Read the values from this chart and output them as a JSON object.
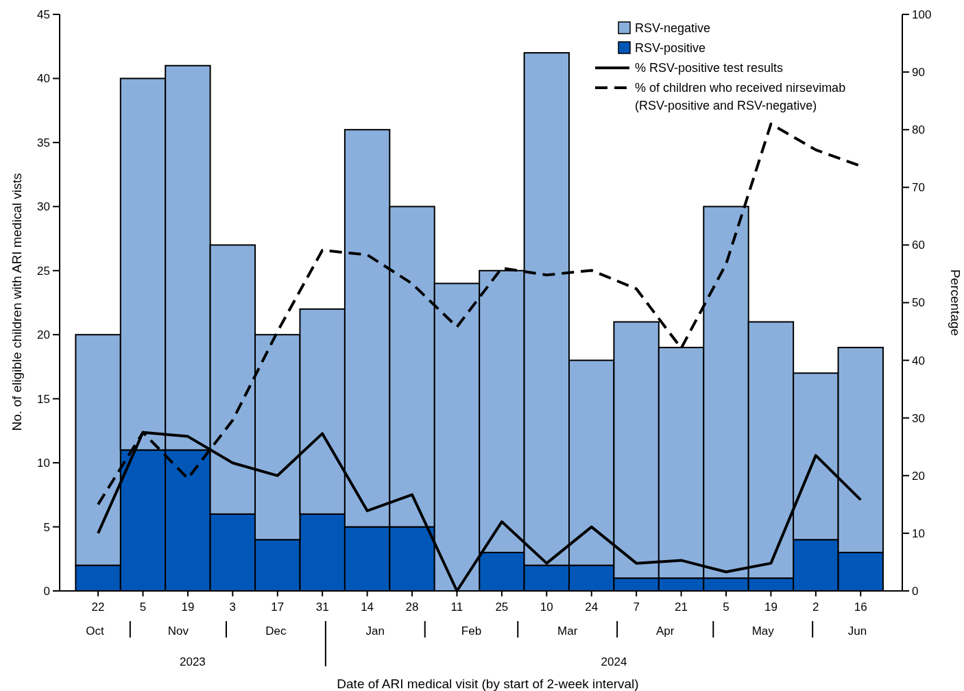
{
  "chart_data": {
    "type": "bar",
    "stacked": true,
    "xlabel": "Date of ARI medical visit (by start of 2-week interval)",
    "ylabel": "No. of eligible children with ARI medical vists",
    "y2label": "Percentage",
    "x": [
      "2023-10-22",
      "2023-11-05",
      "2023-11-19",
      "2023-12-03",
      "2023-12-17",
      "2023-12-31",
      "2024-01-14",
      "2024-01-28",
      "2024-02-11",
      "2024-02-25",
      "2024-03-10",
      "2024-03-24",
      "2024-04-07",
      "2024-04-21",
      "2024-05-05",
      "2024-05-19",
      "2024-06-02",
      "2024-06-16"
    ],
    "xlim": [
      "2023-10-10",
      "2024-06-29"
    ],
    "xticks": [
      {
        "value": "2023-10-22",
        "label": "22"
      },
      {
        "value": "2023-11-05",
        "label": "5"
      },
      {
        "value": "2023-11-19",
        "label": "19"
      },
      {
        "value": "2023-12-03",
        "label": "3"
      },
      {
        "value": "2023-12-17",
        "label": "17"
      },
      {
        "value": "2023-12-31",
        "label": "31"
      },
      {
        "value": "2024-01-14",
        "label": "14"
      },
      {
        "value": "2024-01-28",
        "label": "28"
      },
      {
        "value": "2024-02-11",
        "label": "11"
      },
      {
        "value": "2024-02-25",
        "label": "25"
      },
      {
        "value": "2024-03-10",
        "label": "10"
      },
      {
        "value": "2024-03-24",
        "label": "24"
      },
      {
        "value": "2024-04-07",
        "label": "7"
      },
      {
        "value": "2024-04-21",
        "label": "21"
      },
      {
        "value": "2024-05-05",
        "label": "5"
      },
      {
        "value": "2024-05-19",
        "label": "19"
      },
      {
        "value": "2024-06-02",
        "label": "2"
      },
      {
        "value": "2024-06-16",
        "label": "16"
      }
    ],
    "ylim": [
      0,
      45
    ],
    "yticks": [
      0,
      5,
      10,
      15,
      20,
      25,
      30,
      35,
      40,
      45
    ],
    "y2lim": [
      0,
      100
    ],
    "y2ticks": [
      0,
      10,
      20,
      30,
      40,
      50,
      60,
      70,
      80,
      90,
      100
    ],
    "grid": false,
    "legend": "top right",
    "series": [
      {
        "name": "RSV-positive",
        "color": "#0057b7",
        "values": [
          2,
          11,
          11,
          6,
          4,
          6,
          5,
          5,
          0,
          3,
          2,
          2,
          1,
          1,
          1,
          1,
          4,
          3
        ]
      },
      {
        "name": "RSV-negative",
        "color": "#8aafdc",
        "values": [
          18,
          29,
          30,
          21,
          16,
          16,
          31,
          25,
          24,
          22,
          40,
          16,
          20,
          18,
          29,
          20,
          13,
          16
        ]
      },
      {
        "name": "% RSV-positive test results",
        "type": "line",
        "axis": "y2",
        "line_style": "solid",
        "color": "#000000",
        "values": [
          10,
          27.5,
          26.8,
          22.2,
          20,
          27.3,
          13.9,
          16.7,
          0,
          12,
          4.8,
          11.1,
          4.8,
          5.3,
          3.3,
          4.8,
          23.5,
          15.8
        ]
      },
      {
        "name": "% of children who received nirsevimab (RSV-positive and RSV-negative)",
        "type": "line",
        "axis": "y2",
        "line_style": "dashed",
        "color": "#000000",
        "values": [
          15,
          27.5,
          19.5,
          29.6,
          45,
          59.1,
          58.3,
          53.3,
          45.8,
          56,
          54.8,
          55.6,
          52.4,
          42.1,
          56.7,
          81,
          76.5,
          73.7
        ]
      }
    ],
    "annotations": [
      "Oct",
      "Nov",
      "Dec",
      "Jan",
      "Feb",
      "Mar",
      "Apr",
      "May",
      "Jun",
      "2023",
      "2024"
    ]
  }
}
